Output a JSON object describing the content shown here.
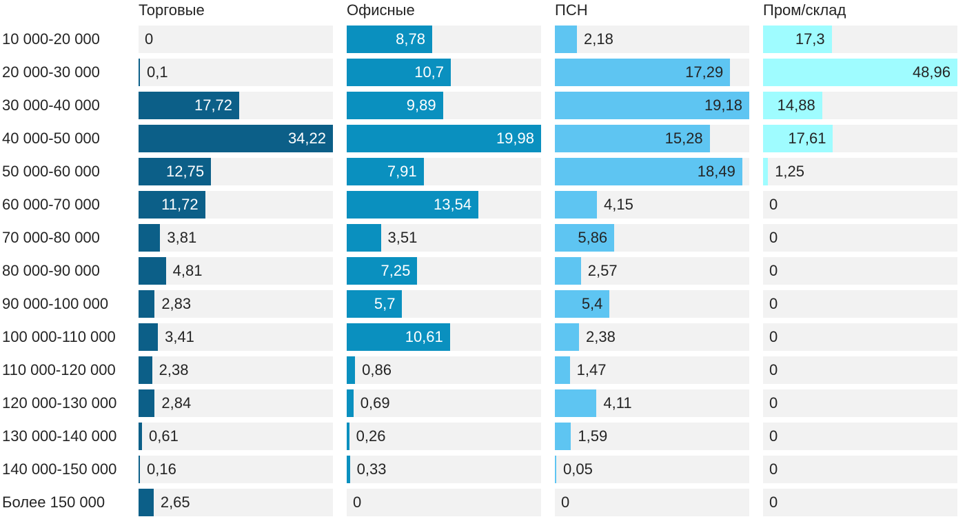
{
  "chart_data": {
    "type": "bar",
    "orientation": "horizontal",
    "title": "",
    "xlabel": "",
    "ylabel": "",
    "grid": false,
    "legend_position": "column-headers-top",
    "scaling": "each column scaled independently to its own max value",
    "track_color": "#f2f2f2",
    "text_color": "#242424",
    "background_color": "#ffffff",
    "categories": [
      "10 000-20 000",
      "20 000-30 000",
      "30 000-40 000",
      "40 000-50 000",
      "50 000-60 000",
      "60 000-70 000",
      "70 000-80 000",
      "80 000-90 000",
      "90 000-100 000",
      "100 000-110 000",
      "110 000-120 000",
      "120 000-130 000",
      "130 000-140 000",
      "140 000-150 000",
      "Более 150 000"
    ],
    "series": [
      {
        "name": "Торговые",
        "color": "#0c5f88",
        "value_label_color_inside": "#ffffff",
        "xmax": 34.22,
        "values": [
          0,
          0.1,
          17.72,
          34.22,
          12.75,
          11.72,
          3.81,
          4.81,
          2.83,
          3.41,
          2.38,
          2.84,
          0.61,
          0.16,
          2.65
        ],
        "value_labels": [
          "0",
          "0,1",
          "17,72",
          "34,22",
          "12,75",
          "11,72",
          "3,81",
          "4,81",
          "2,83",
          "3,41",
          "2,38",
          "2,84",
          "0,61",
          "0,16",
          "2,65"
        ]
      },
      {
        "name": "Офисные",
        "color": "#0a90bf",
        "value_label_color_inside": "#ffffff",
        "xmax": 19.98,
        "values": [
          8.78,
          10.7,
          9.89,
          19.98,
          7.91,
          13.54,
          3.51,
          7.25,
          5.7,
          10.61,
          0.86,
          0.69,
          0.26,
          0.33,
          0
        ],
        "value_labels": [
          "8,78",
          "10,7",
          "9,89",
          "19,98",
          "7,91",
          "13,54",
          "3,51",
          "7,25",
          "5,7",
          "10,61",
          "0,86",
          "0,69",
          "0,26",
          "0,33",
          "0"
        ]
      },
      {
        "name": "ПСН",
        "color": "#5ec5f2",
        "value_label_color_inside": "#242424",
        "xmax": 19.18,
        "values": [
          2.18,
          17.29,
          19.18,
          15.28,
          18.49,
          4.15,
          5.86,
          2.57,
          5.4,
          2.38,
          1.47,
          4.11,
          1.59,
          0.05,
          0
        ],
        "value_labels": [
          "2,18",
          "17,29",
          "19,18",
          "15,28",
          "18,49",
          "4,15",
          "5,86",
          "2,57",
          "5,4",
          "2,38",
          "1,47",
          "4,11",
          "1,59",
          "0,05",
          "0"
        ]
      },
      {
        "name": "Пром/склад",
        "color": "#9ffcff",
        "value_label_color_inside": "#242424",
        "xmax": 48.96,
        "values": [
          17.3,
          48.96,
          14.88,
          17.61,
          1.25,
          0,
          0,
          0,
          0,
          0,
          0,
          0,
          0,
          0,
          0
        ],
        "value_labels": [
          "17,3",
          "48,96",
          "14,88",
          "17,61",
          "1,25",
          "0",
          "0",
          "0",
          "0",
          "0",
          "0",
          "0",
          "0",
          "0",
          "0"
        ]
      }
    ]
  }
}
